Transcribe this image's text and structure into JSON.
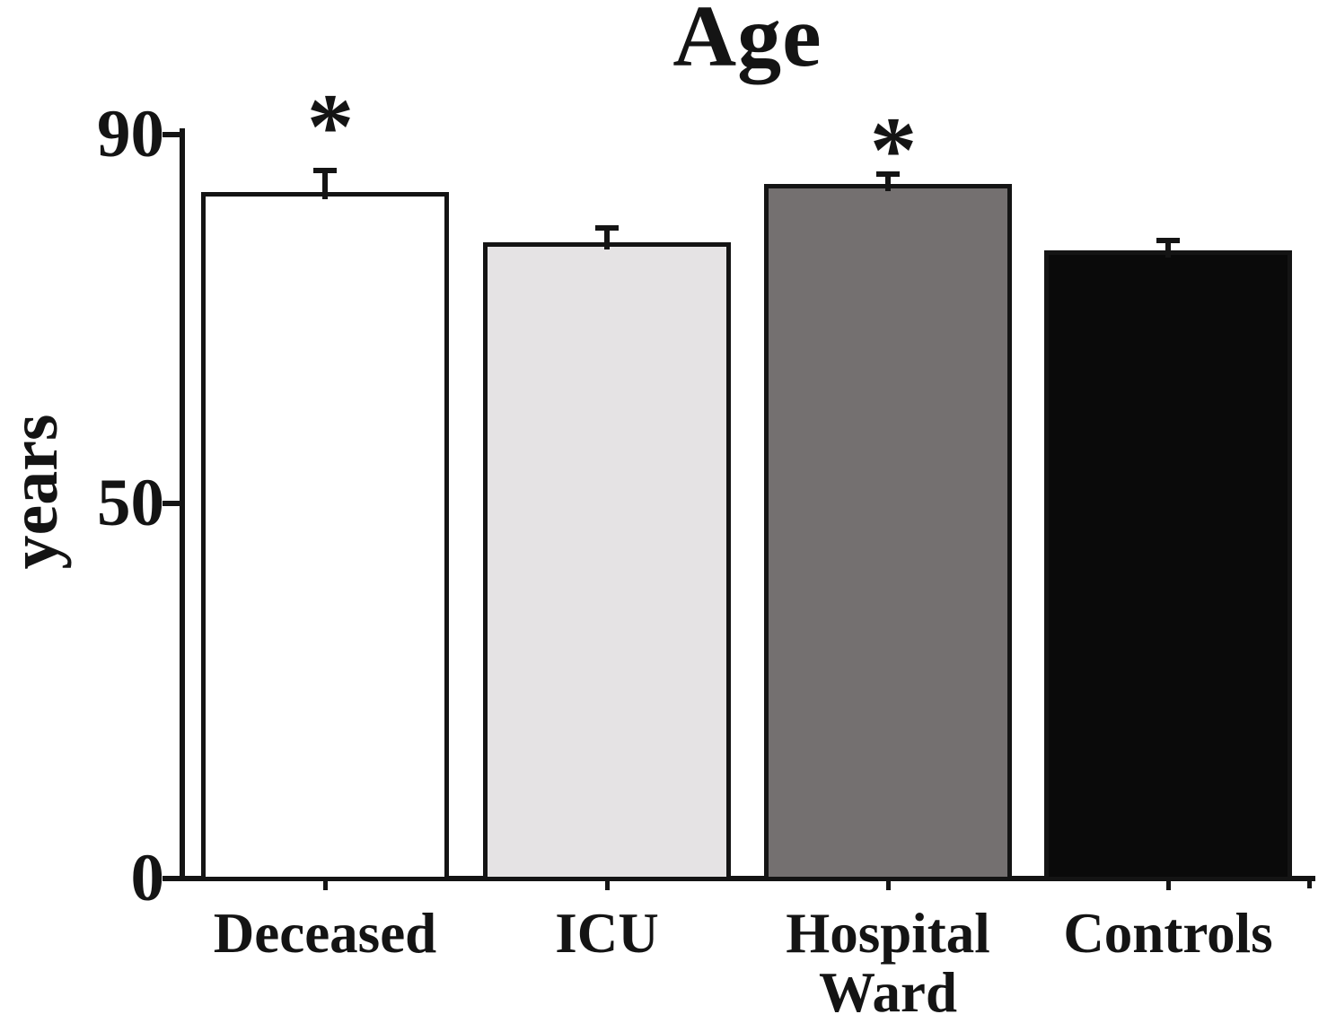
{
  "chart_data": {
    "type": "bar",
    "title": "Age",
    "ylabel": "years",
    "xlabel": "",
    "categories": [
      "Deceased",
      "ICU",
      "Hospital Ward",
      "Controls"
    ],
    "values": [
      83,
      77,
      84,
      76
    ],
    "errors": [
      3,
      2,
      1.5,
      1.5
    ],
    "error_direction": "upper-only",
    "significance_markers": [
      "*",
      "",
      "*",
      ""
    ],
    "bar_colors": [
      "#ffffff",
      "#e5e3e4",
      "#747070",
      "#0a0a0a"
    ],
    "bar_border_color": "#141414",
    "axis_color": "#141414",
    "ylim": [
      0,
      90
    ],
    "yticks": [
      90,
      50,
      0
    ],
    "ytick_labels": [
      "90",
      "50",
      "0"
    ],
    "grid": false,
    "legend": "none"
  }
}
